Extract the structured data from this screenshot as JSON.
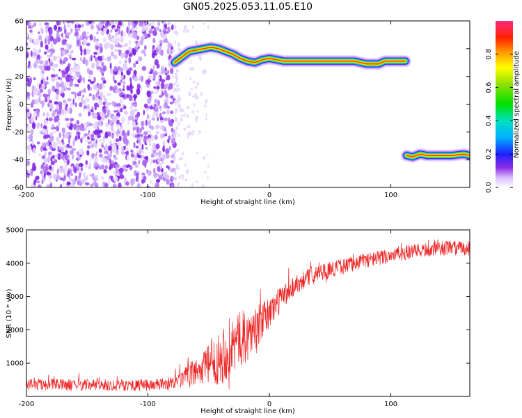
{
  "chart_data": [
    {
      "type": "heatmap",
      "title": "GN05.2025.053.11.05.E10",
      "xlabel": "Height of straight line (km)",
      "ylabel": "Frequency (Hz)",
      "xlim": [
        -200,
        165
      ],
      "ylim": [
        -60,
        60
      ],
      "xticks": [
        -200,
        -100,
        0,
        100
      ],
      "yticks": [
        -60,
        -40,
        -20,
        0,
        20,
        40,
        60
      ],
      "colorbar": {
        "label": "Normalized spectral amplitude",
        "range": [
          0,
          1
        ],
        "ticks": [
          "0.0",
          "0.2",
          "0.4",
          "0.6",
          "0.8"
        ]
      },
      "features": {
        "noise_region_x": [
          -200,
          -78
        ],
        "upper_track": {
          "x": [
            -78,
            -72,
            -66,
            -60,
            -54,
            -48,
            -42,
            -36,
            -30,
            -24,
            -18,
            -12,
            -6,
            0,
            6,
            12,
            18,
            30,
            45,
            60,
            70,
            75,
            80,
            85,
            90,
            95,
            100,
            105,
            112
          ],
          "y": [
            30,
            34,
            38,
            39,
            40,
            41,
            40,
            38,
            36,
            33,
            31,
            30,
            32,
            33,
            32,
            31,
            31,
            31,
            31,
            31,
            31,
            30,
            29,
            29,
            29,
            31,
            31,
            31,
            31
          ]
        },
        "lower_track": {
          "x": [
            113,
            118,
            124,
            130,
            140,
            150,
            160,
            165
          ],
          "y": [
            -37,
            -38,
            -36,
            -37,
            -37,
            -37,
            -36,
            -37
          ]
        }
      }
    },
    {
      "type": "line",
      "xlabel": "Height of straight line (km)",
      "ylabel": "SNR (10 * v/v)",
      "xlim": [
        -200,
        165
      ],
      "ylim": [
        0,
        5000
      ],
      "xticks": [
        -200,
        -100,
        0,
        100
      ],
      "yticks": [
        1000,
        2000,
        3000,
        4000,
        5000
      ],
      "series": [
        {
          "color": "#ee2222",
          "x": [
            -200,
            -180,
            -160,
            -140,
            -120,
            -100,
            -90,
            -80,
            -75,
            -70,
            -65,
            -60,
            -55,
            -50,
            -45,
            -40,
            -35,
            -30,
            -25,
            -20,
            -15,
            -10,
            -5,
            0,
            5,
            10,
            15,
            20,
            25,
            30,
            40,
            50,
            60,
            70,
            80,
            90,
            100,
            110,
            120,
            130,
            140,
            150,
            160,
            165
          ],
          "values": [
            350,
            350,
            340,
            340,
            340,
            340,
            360,
            380,
            450,
            550,
            650,
            750,
            850,
            950,
            1050,
            1200,
            1400,
            1550,
            1700,
            1800,
            1900,
            2100,
            2300,
            2500,
            2750,
            2950,
            3150,
            3300,
            3450,
            3550,
            3700,
            3800,
            3900,
            4000,
            4100,
            4150,
            4250,
            4300,
            4350,
            4400,
            4450,
            4450,
            4450,
            4450
          ],
          "noise_amplitude": [
            180,
            180,
            180,
            180,
            180,
            180,
            180,
            190,
            240,
            300,
            380,
            450,
            520,
            600,
            700,
            850,
            950,
            900,
            850,
            800,
            700,
            650,
            550,
            500,
            450,
            400,
            350,
            320,
            300,
            280,
            260,
            250,
            240,
            230,
            230,
            230,
            230,
            230,
            220,
            220,
            220,
            220,
            220,
            220
          ]
        }
      ]
    }
  ]
}
